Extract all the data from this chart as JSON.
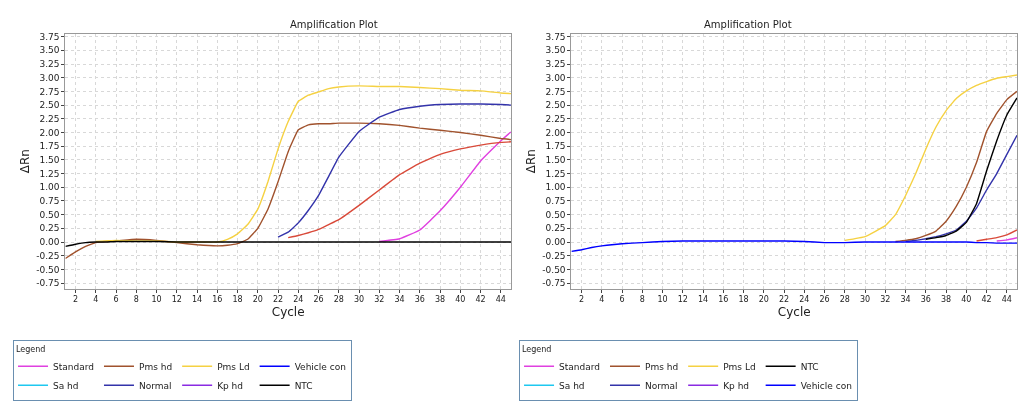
{
  "chart_data": [
    {
      "type": "line",
      "title": "Amplification Plot",
      "xlabel": "Cycle",
      "ylabel": "ΔRn",
      "legend_title": "Legend",
      "legend": "bottom",
      "grid": true,
      "xlim": [
        1,
        45
      ],
      "xticks": [
        2,
        4,
        6,
        8,
        10,
        12,
        14,
        16,
        18,
        20,
        22,
        24,
        26,
        28,
        30,
        32,
        34,
        36,
        38,
        40,
        42,
        44
      ],
      "ylim": [
        -0.85,
        3.8
      ],
      "yticks": [
        {
          "value": -0.75,
          "label": "-0.75"
        },
        {
          "value": -0.5,
          "label": "-0.50"
        },
        {
          "value": -0.25,
          "label": "-0.25"
        },
        {
          "value": 0,
          "label": "0.00"
        },
        {
          "value": 0.25,
          "label": "0.25"
        },
        {
          "value": 0.5,
          "label": "0.50"
        },
        {
          "value": 0.75,
          "label": "0.75"
        },
        {
          "value": 1,
          "label": "1.00"
        },
        {
          "value": 1.25,
          "label": "1.25"
        },
        {
          "value": 1.5,
          "label": "1.50"
        },
        {
          "value": 1.75,
          "label": "1.75"
        },
        {
          "value": 2,
          "label": "2.00"
        },
        {
          "value": 2.25,
          "label": "2.25"
        },
        {
          "value": 2.5,
          "label": "2.50"
        },
        {
          "value": 2.75,
          "label": "2.75"
        },
        {
          "value": 3,
          "label": "3.00"
        },
        {
          "value": 3.25,
          "label": "3.25"
        },
        {
          "value": 3.5,
          "label": "3.50"
        },
        {
          "value": 3.75,
          "label": "3.75"
        }
      ],
      "x": [
        1,
        2,
        3,
        4,
        5,
        6,
        8,
        10,
        12,
        14,
        16,
        17,
        18,
        19,
        20,
        21,
        22,
        23,
        24,
        25,
        26,
        27,
        28,
        30,
        32,
        34,
        36,
        38,
        40,
        42,
        44,
        45
      ],
      "series": [
        {
          "name": "Standard",
          "color": "#e040e0",
          "values": [
            null,
            null,
            null,
            null,
            null,
            null,
            null,
            null,
            null,
            null,
            null,
            null,
            null,
            null,
            null,
            null,
            null,
            null,
            null,
            null,
            null,
            null,
            null,
            null,
            0.01,
            0.06,
            0.22,
            0.57,
            1.0,
            1.48,
            1.85,
            2.01
          ]
        },
        {
          "name": "Sa hd",
          "color": "#1ec8f0",
          "values": [
            null,
            null,
            null,
            null,
            null,
            null,
            null,
            null,
            null,
            null,
            null,
            null,
            null,
            null,
            null,
            null,
            null,
            null,
            null,
            null,
            null,
            null,
            null,
            null,
            null,
            null,
            null,
            null,
            null,
            null,
            null,
            null
          ]
        },
        {
          "name": "Pms hd",
          "color": "#a0522d",
          "values": [
            -0.3,
            -0.18,
            -0.08,
            -0.01,
            0.01,
            0.02,
            0.05,
            0.03,
            -0.01,
            -0.05,
            -0.07,
            -0.06,
            -0.03,
            0.05,
            0.25,
            0.6,
            1.1,
            1.65,
            2.05,
            2.14,
            2.16,
            2.16,
            2.17,
            2.17,
            2.16,
            2.13,
            2.08,
            2.04,
            2.0,
            1.95,
            1.89,
            1.87
          ]
        },
        {
          "name": "Normal",
          "color": "#3333aa",
          "values": [
            null,
            null,
            null,
            null,
            null,
            null,
            null,
            null,
            null,
            null,
            null,
            null,
            null,
            null,
            null,
            null,
            0.09,
            0.18,
            0.35,
            0.58,
            0.85,
            1.2,
            1.55,
            2.02,
            2.28,
            2.42,
            2.48,
            2.51,
            2.52,
            2.52,
            2.51,
            2.5
          ]
        },
        {
          "name": "Pms Ld",
          "color": "#f5d142",
          "values": [
            null,
            null,
            null,
            0.01,
            0.02,
            0.03,
            0.02,
            0.02,
            0,
            0,
            0,
            0.05,
            0.15,
            0.32,
            0.6,
            1.1,
            1.7,
            2.2,
            2.57,
            2.68,
            2.74,
            2.8,
            2.83,
            2.85,
            2.84,
            2.84,
            2.82,
            2.8,
            2.77,
            2.76,
            2.72,
            2.71
          ]
        },
        {
          "name": "Kp hd",
          "color": "#8a2be2",
          "values": [
            null,
            null,
            null,
            null,
            null,
            null,
            null,
            null,
            null,
            null,
            null,
            null,
            null,
            null,
            null,
            null,
            null,
            null,
            null,
            null,
            null,
            null,
            null,
            null,
            null,
            null,
            null,
            null,
            null,
            null,
            null,
            null
          ]
        },
        {
          "name": "Vehicle con",
          "color": "#0000ff",
          "values": [
            null,
            null,
            null,
            null,
            null,
            null,
            null,
            null,
            null,
            null,
            null,
            null,
            null,
            null,
            null,
            null,
            null,
            null,
            null,
            null,
            null,
            null,
            null,
            null,
            null,
            null,
            null,
            null,
            null,
            null,
            null,
            null
          ]
        },
        {
          "color": "#d94a3a",
          "values": [
            null,
            null,
            null,
            null,
            null,
            null,
            null,
            null,
            null,
            null,
            null,
            null,
            null,
            null,
            null,
            null,
            null,
            0.08,
            0.12,
            0.17,
            0.23,
            0.32,
            0.41,
            0.67,
            0.95,
            1.23,
            1.44,
            1.6,
            1.7,
            1.77,
            1.82,
            1.83
          ]
        },
        {
          "name": "NTC",
          "color": "#000000",
          "values": [
            -0.08,
            -0.04,
            -0.01,
            0,
            0,
            0.01,
            0.01,
            0.01,
            0,
            0,
            0,
            0,
            0,
            0,
            0,
            0,
            0,
            0,
            0,
            0,
            0,
            0,
            0,
            0,
            0,
            0,
            0,
            0,
            0,
            0,
            0,
            0
          ]
        }
      ]
    },
    {
      "type": "line",
      "title": "Amplification Plot",
      "xlabel": "Cycle",
      "ylabel": "ΔRn",
      "legend_title": "Legend",
      "legend": "bottom",
      "grid": true,
      "xlim": [
        1,
        45
      ],
      "xticks": [
        2,
        4,
        6,
        8,
        10,
        12,
        14,
        16,
        18,
        20,
        22,
        24,
        26,
        28,
        30,
        32,
        34,
        36,
        38,
        40,
        42,
        44
      ],
      "ylim": [
        -0.85,
        3.8
      ],
      "yticks": [
        {
          "value": -0.75,
          "label": "-0.75"
        },
        {
          "value": -0.5,
          "label": "-0.50"
        },
        {
          "value": -0.25,
          "label": "-0.25"
        },
        {
          "value": 0,
          "label": "0.00"
        },
        {
          "value": 0.25,
          "label": "0.25"
        },
        {
          "value": 0.5,
          "label": "0.50"
        },
        {
          "value": 0.75,
          "label": "0.75"
        },
        {
          "value": 1,
          "label": "1.00"
        },
        {
          "value": 1.25,
          "label": "1.25"
        },
        {
          "value": 1.5,
          "label": "1.50"
        },
        {
          "value": 1.75,
          "label": "1.75"
        },
        {
          "value": 2,
          "label": "2.00"
        },
        {
          "value": 2.25,
          "label": "2.25"
        },
        {
          "value": 2.5,
          "label": "2.50"
        },
        {
          "value": 2.75,
          "label": "2.75"
        },
        {
          "value": 3,
          "label": "3.00"
        },
        {
          "value": 3.25,
          "label": "3.25"
        },
        {
          "value": 3.5,
          "label": "3.50"
        },
        {
          "value": 3.75,
          "label": "3.75"
        }
      ],
      "x": [
        1,
        2,
        3,
        4,
        5,
        6,
        8,
        10,
        12,
        14,
        16,
        18,
        20,
        22,
        24,
        26,
        28,
        30,
        32,
        33,
        34,
        35,
        36,
        37,
        38,
        39,
        40,
        41,
        42,
        43,
        44,
        45
      ],
      "series": [
        {
          "name": "Standard",
          "color": "#e040e0",
          "values": [
            null,
            null,
            null,
            null,
            null,
            null,
            null,
            null,
            null,
            null,
            null,
            null,
            null,
            null,
            null,
            null,
            null,
            null,
            null,
            null,
            null,
            null,
            null,
            null,
            null,
            null,
            null,
            null,
            null,
            0.02,
            0.04,
            0.08
          ]
        },
        {
          "name": "Sa hd",
          "color": "#1ec8f0",
          "values": [
            null,
            null,
            null,
            null,
            null,
            null,
            null,
            null,
            null,
            null,
            null,
            null,
            null,
            null,
            null,
            null,
            null,
            null,
            null,
            null,
            null,
            null,
            null,
            null,
            null,
            null,
            null,
            null,
            null,
            null,
            null,
            null
          ]
        },
        {
          "name": "Pms hd",
          "color": "#a0522d",
          "values": [
            null,
            null,
            null,
            null,
            null,
            null,
            null,
            null,
            null,
            null,
            null,
            null,
            null,
            null,
            null,
            null,
            null,
            null,
            null,
            0.01,
            0.03,
            0.06,
            0.12,
            0.2,
            0.38,
            0.65,
            1.0,
            1.45,
            2.02,
            2.35,
            2.6,
            2.75
          ]
        },
        {
          "name": "Normal",
          "color": "#3333aa",
          "values": [
            null,
            null,
            null,
            null,
            null,
            null,
            null,
            null,
            null,
            null,
            null,
            null,
            null,
            null,
            null,
            null,
            null,
            null,
            null,
            null,
            0.01,
            0.03,
            0.06,
            0.1,
            0.15,
            0.22,
            0.38,
            0.62,
            0.95,
            1.25,
            1.6,
            1.95
          ]
        },
        {
          "name": "Pms Ld",
          "color": "#f5d142",
          "values": [
            null,
            null,
            null,
            null,
            null,
            null,
            null,
            null,
            null,
            null,
            null,
            null,
            null,
            null,
            null,
            null,
            0.03,
            0.1,
            0.3,
            0.5,
            0.85,
            1.25,
            1.7,
            2.1,
            2.4,
            2.62,
            2.76,
            2.86,
            2.93,
            2.99,
            3.02,
            3.05
          ]
        },
        {
          "name": "Kp hd",
          "color": "#8a2be2",
          "values": [
            null,
            null,
            null,
            null,
            null,
            null,
            null,
            null,
            null,
            null,
            null,
            null,
            null,
            null,
            null,
            null,
            null,
            null,
            null,
            null,
            null,
            null,
            null,
            null,
            null,
            null,
            null,
            null,
            null,
            null,
            null,
            null
          ]
        },
        {
          "color": "#d94a3a",
          "values": [
            null,
            null,
            null,
            null,
            null,
            null,
            null,
            null,
            null,
            null,
            null,
            null,
            null,
            null,
            null,
            null,
            null,
            null,
            null,
            null,
            null,
            null,
            null,
            null,
            null,
            null,
            null,
            0.02,
            0.05,
            0.08,
            0.13,
            0.22
          ]
        },
        {
          "name": "NTC",
          "color": "#000000",
          "values": [
            null,
            null,
            null,
            null,
            null,
            null,
            null,
            null,
            null,
            null,
            null,
            null,
            null,
            null,
            null,
            null,
            null,
            null,
            null,
            null,
            null,
            null,
            0.05,
            0.08,
            0.12,
            0.2,
            0.36,
            0.7,
            1.3,
            1.85,
            2.32,
            2.63
          ]
        },
        {
          "name": "Vehicle con",
          "color": "#0000ff",
          "values": [
            -0.17,
            -0.14,
            -0.1,
            -0.07,
            -0.05,
            -0.03,
            -0.01,
            0.01,
            0.02,
            0.02,
            0.02,
            0.02,
            0.02,
            0.02,
            0.01,
            -0.01,
            -0.01,
            0,
            0,
            0,
            0,
            0,
            0,
            0,
            0,
            0,
            0,
            -0.01,
            -0.01,
            -0.02,
            -0.02,
            -0.02
          ]
        }
      ]
    }
  ]
}
